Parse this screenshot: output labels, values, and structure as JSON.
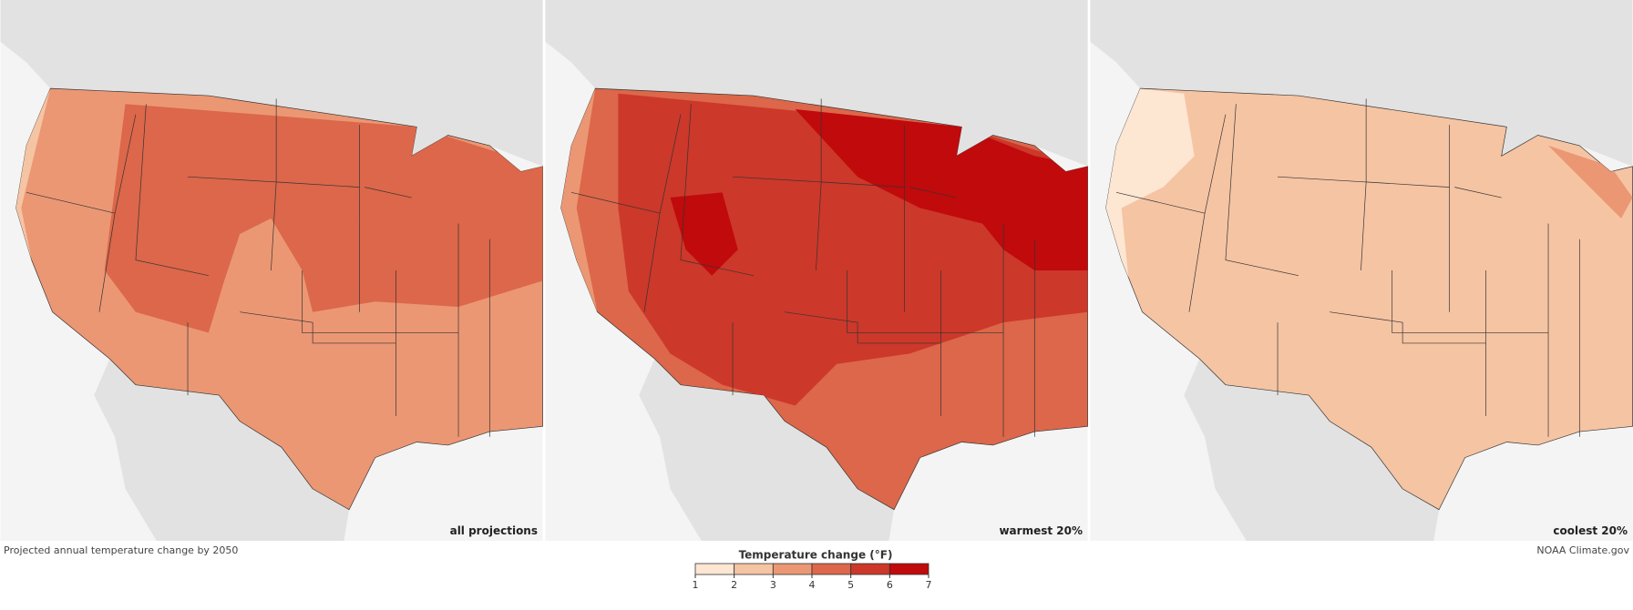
{
  "title": "Projected annual temperature change by 2050",
  "credit": "NOAA Climate.gov",
  "panels": [
    {
      "label": "all projections"
    },
    {
      "label": "warmest 20%"
    },
    {
      "label": "coolest 20%"
    }
  ],
  "legend": {
    "title": "Temperature change (°F)",
    "bins": [
      1,
      2,
      3,
      4,
      5,
      6,
      7
    ],
    "colors": [
      "#fde6d2",
      "#f5c4a3",
      "#eb9774",
      "#dc674a",
      "#cc382a",
      "#c00a0c"
    ]
  }
}
